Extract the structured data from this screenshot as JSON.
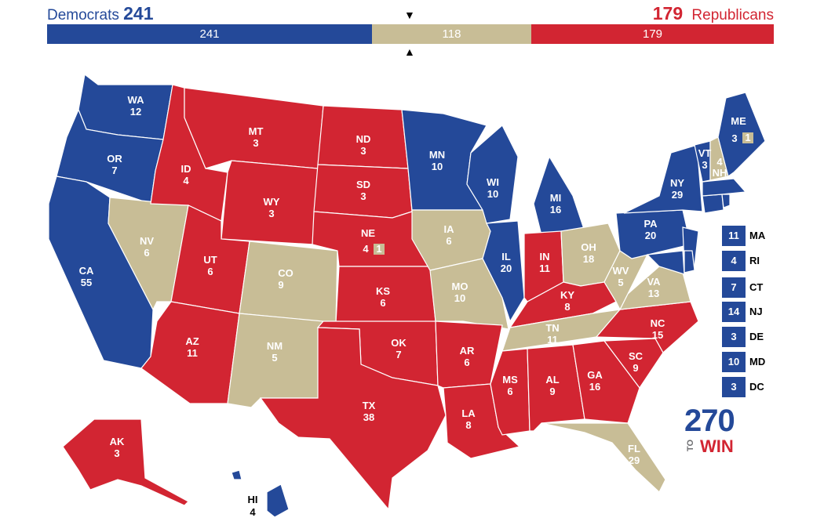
{
  "header": {
    "dem_label": "Democrats",
    "dem_total": "241",
    "rep_total": "179",
    "rep_label": "Republicans"
  },
  "bar": {
    "dem": "241",
    "tossup": "118",
    "rep": "179",
    "arrow_top": "▼",
    "arrow_bottom": "▲"
  },
  "colors": {
    "democrat": "#244999",
    "republican": "#d22532",
    "tossup": "#c8bd96"
  },
  "states": {
    "WA": {
      "abbr": "WA",
      "ev": "12"
    },
    "OR": {
      "abbr": "OR",
      "ev": "7"
    },
    "CA": {
      "abbr": "CA",
      "ev": "55"
    },
    "NV": {
      "abbr": "NV",
      "ev": "6"
    },
    "ID": {
      "abbr": "ID",
      "ev": "4"
    },
    "MT": {
      "abbr": "MT",
      "ev": "3"
    },
    "WY": {
      "abbr": "WY",
      "ev": "3"
    },
    "UT": {
      "abbr": "UT",
      "ev": "6"
    },
    "AZ": {
      "abbr": "AZ",
      "ev": "11"
    },
    "CO": {
      "abbr": "CO",
      "ev": "9"
    },
    "NM": {
      "abbr": "NM",
      "ev": "5"
    },
    "ND": {
      "abbr": "ND",
      "ev": "3"
    },
    "SD": {
      "abbr": "SD",
      "ev": "3"
    },
    "NE": {
      "abbr": "NE",
      "ev": "4",
      "extra": "1"
    },
    "KS": {
      "abbr": "KS",
      "ev": "6"
    },
    "OK": {
      "abbr": "OK",
      "ev": "7"
    },
    "TX": {
      "abbr": "TX",
      "ev": "38"
    },
    "MN": {
      "abbr": "MN",
      "ev": "10"
    },
    "IA": {
      "abbr": "IA",
      "ev": "6"
    },
    "MO": {
      "abbr": "MO",
      "ev": "10"
    },
    "AR": {
      "abbr": "AR",
      "ev": "6"
    },
    "LA": {
      "abbr": "LA",
      "ev": "8"
    },
    "WI": {
      "abbr": "WI",
      "ev": "10"
    },
    "IL": {
      "abbr": "IL",
      "ev": "20"
    },
    "MI": {
      "abbr": "MI",
      "ev": "16"
    },
    "IN": {
      "abbr": "IN",
      "ev": "11"
    },
    "OH": {
      "abbr": "OH",
      "ev": "18"
    },
    "KY": {
      "abbr": "KY",
      "ev": "8"
    },
    "TN": {
      "abbr": "TN",
      "ev": "11"
    },
    "MS": {
      "abbr": "MS",
      "ev": "6"
    },
    "AL": {
      "abbr": "AL",
      "ev": "9"
    },
    "GA": {
      "abbr": "GA",
      "ev": "16"
    },
    "FL": {
      "abbr": "FL",
      "ev": "29"
    },
    "SC": {
      "abbr": "SC",
      "ev": "9"
    },
    "NC": {
      "abbr": "NC",
      "ev": "15"
    },
    "VA": {
      "abbr": "VA",
      "ev": "13"
    },
    "WV": {
      "abbr": "WV",
      "ev": "5"
    },
    "PA": {
      "abbr": "PA",
      "ev": "20"
    },
    "NY": {
      "abbr": "NY",
      "ev": "29"
    },
    "VT": {
      "abbr": "VT",
      "ev": "3"
    },
    "NH": {
      "abbr": "NH",
      "ev": "4"
    },
    "ME": {
      "abbr": "ME",
      "ev": "3",
      "extra": "1"
    },
    "AK": {
      "abbr": "AK",
      "ev": "3"
    },
    "HI": {
      "abbr": "HI",
      "ev": "4"
    }
  },
  "small_states": [
    {
      "abbr": "MA",
      "ev": "11"
    },
    {
      "abbr": "RI",
      "ev": "4"
    },
    {
      "abbr": "CT",
      "ev": "7"
    },
    {
      "abbr": "NJ",
      "ev": "14"
    },
    {
      "abbr": "DE",
      "ev": "3"
    },
    {
      "abbr": "MD",
      "ev": "10"
    },
    {
      "abbr": "DC",
      "ev": "3"
    }
  ],
  "logo": {
    "number": "270",
    "to": "TO",
    "win": "WIN"
  }
}
